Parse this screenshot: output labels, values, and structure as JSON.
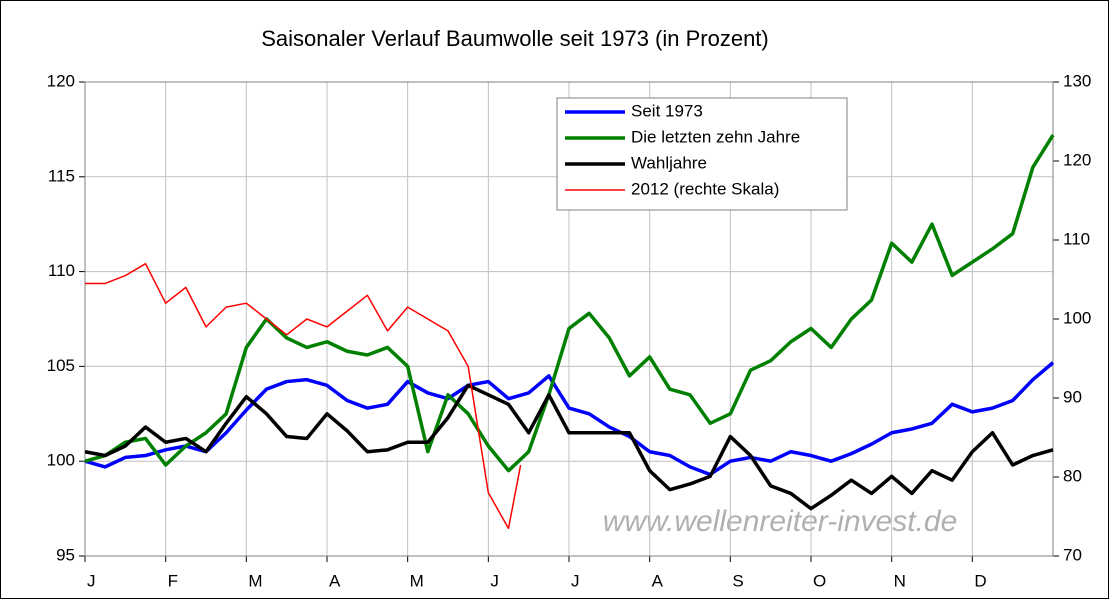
{
  "chart_data": {
    "type": "line",
    "title": "Saisonaler Verlauf Baumwolle seit 1973 (in Prozent)",
    "annotation": "www.wellenreiter-invest.de",
    "x": [
      0,
      0.25,
      0.5,
      0.75,
      1,
      1.25,
      1.5,
      1.75,
      2,
      2.25,
      2.5,
      2.75,
      3,
      3.25,
      3.5,
      3.75,
      4,
      4.25,
      4.5,
      4.75,
      5,
      5.25,
      5.5,
      5.75,
      6,
      6.25,
      6.5,
      6.75,
      7,
      7.25,
      7.5,
      7.75,
      8,
      8.25,
      8.5,
      8.75,
      9,
      9.25,
      9.5,
      9.75,
      10,
      10.25,
      10.5,
      10.75,
      11,
      11.25,
      11.5,
      11.75,
      12
    ],
    "xlim": [
      0,
      12
    ],
    "xticks": [
      {
        "value": 0,
        "label": "J"
      },
      {
        "value": 1,
        "label": "F"
      },
      {
        "value": 2,
        "label": "M"
      },
      {
        "value": 3,
        "label": "A"
      },
      {
        "value": 4,
        "label": "M"
      },
      {
        "value": 5,
        "label": "J"
      },
      {
        "value": 6,
        "label": "J"
      },
      {
        "value": 7,
        "label": "A"
      },
      {
        "value": 8,
        "label": "S"
      },
      {
        "value": 9,
        "label": "O"
      },
      {
        "value": 10,
        "label": "N"
      },
      {
        "value": 11,
        "label": "D"
      }
    ],
    "ylim": [
      95,
      120
    ],
    "yticks": [
      95,
      100,
      105,
      110,
      115,
      120
    ],
    "y2lim": [
      70,
      130
    ],
    "y2ticks": [
      70,
      80,
      90,
      100,
      110,
      120,
      130
    ],
    "grid": true,
    "legend": "top",
    "series": [
      {
        "name": "Seit 1973",
        "color": "#0000ff",
        "values": [
          100,
          99.7,
          100.2,
          100.3,
          100.6,
          100.8,
          100.5,
          101.5,
          102.7,
          103.8,
          104.2,
          104.3,
          104,
          103.2,
          102.8,
          103,
          104.2,
          103.6,
          103.3,
          104,
          104.2,
          103.3,
          103.6,
          104.5,
          102.8,
          102.5,
          101.8,
          101.3,
          100.5,
          100.3,
          99.7,
          99.3,
          100,
          100.2,
          100,
          100.5,
          100.3,
          100,
          100.4,
          100.9,
          101.5,
          101.7,
          102,
          103,
          102.6,
          102.8,
          103.2,
          104.3,
          105.2
        ]
      },
      {
        "name": "Die letzten zehn Jahre",
        "color": "#008000",
        "values": [
          100,
          100.3,
          101,
          101.2,
          99.8,
          100.8,
          101.5,
          102.5,
          106,
          107.5,
          106.5,
          106,
          106.3,
          105.8,
          105.6,
          106,
          105,
          100.5,
          103.5,
          102.5,
          100.8,
          99.5,
          100.5,
          103.5,
          107,
          107.8,
          106.5,
          104.5,
          105.5,
          103.8,
          103.5,
          102,
          102.5,
          104.8,
          105.3,
          106.3,
          107,
          106,
          107.5,
          108.5,
          111.5,
          110.5,
          112.5,
          109.8,
          110.5,
          111.2,
          112,
          115.5,
          117.2
        ]
      },
      {
        "name": "Wahljahre",
        "color": "#000000",
        "values": [
          100.5,
          100.3,
          100.8,
          101.8,
          101,
          101.2,
          100.5,
          102,
          103.4,
          102.5,
          101.3,
          101.2,
          102.5,
          101.6,
          100.5,
          100.6,
          101,
          101,
          102.3,
          104,
          103.5,
          103,
          101.5,
          103.5,
          101.5,
          101.5,
          101.5,
          101.5,
          99.5,
          98.5,
          98.8,
          99.2,
          101.3,
          100.3,
          98.7,
          98.3,
          97.5,
          98.2,
          99,
          98.3,
          99.2,
          98.3,
          99.5,
          99,
          100.5,
          101.5,
          99.8,
          100.3,
          100.6
        ]
      },
      {
        "name": "2012 (rechte Skala)",
        "color": "#ff0000",
        "axis": "y2",
        "x": [
          0,
          0.25,
          0.5,
          0.75,
          1,
          1.25,
          1.5,
          1.75,
          2,
          2.25,
          2.5,
          2.75,
          3,
          3.25,
          3.5,
          3.75,
          4,
          4.25,
          4.5,
          4.75,
          5,
          5.25,
          5.4
        ],
        "values": [
          104.5,
          104.5,
          105.5,
          107,
          102,
          104,
          99,
          101.5,
          102,
          100,
          98,
          100,
          99,
          101,
          103,
          98.5,
          101.5,
          100,
          98.5,
          94,
          78,
          73.5,
          81.5
        ]
      }
    ]
  }
}
